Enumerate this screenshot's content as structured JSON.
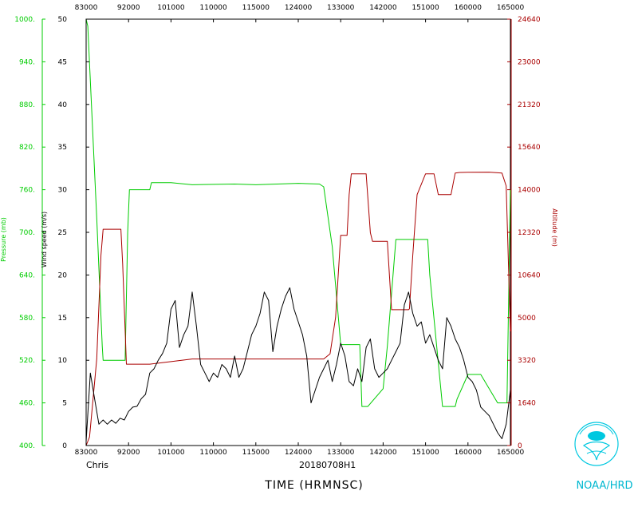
{
  "chart_data": {
    "type": "line",
    "title": "",
    "storm_name": "Chris",
    "flight_id": "20180708H1",
    "xlabel": "TIME (HRMNSC)",
    "credit": "NOAA/HRD",
    "x_ticks_top": [
      "83000",
      "92000",
      "101000",
      "110000",
      "115000",
      "124000",
      "133000",
      "142000",
      "151000",
      "160000",
      "165000"
    ],
    "x_ticks_bottom": [
      "83000",
      "92000",
      "101000",
      "110000",
      "115000",
      "124000",
      "133000",
      "142000",
      "151000",
      "160000",
      "165000"
    ],
    "y_axes": [
      {
        "id": "pressure",
        "label": "Pressure (mb)",
        "color": "#00cc00",
        "side": "left-outer",
        "ylim": [
          400,
          1000
        ],
        "ticks": [
          "400.",
          "460.",
          "520.",
          "580.",
          "640.",
          "700.",
          "760.",
          "820.",
          "880.",
          "940.",
          "1000."
        ]
      },
      {
        "id": "wind",
        "label": "Wind speed (m/s)",
        "color": "#000000",
        "side": "left-inner",
        "ylim": [
          0,
          50
        ],
        "ticks": [
          "0",
          "5",
          "10",
          "15",
          "20",
          "25",
          "30",
          "35",
          "40",
          "45",
          "50"
        ]
      },
      {
        "id": "altitude",
        "label": "Altitude (m)",
        "color": "#aa0000",
        "side": "right",
        "ylim": [
          0,
          24640
        ],
        "ticks": [
          "0",
          "1640",
          "3320",
          "5000",
          "10640",
          "12320",
          "14000",
          "15640",
          "21320",
          "23000",
          "24640"
        ]
      }
    ],
    "x_index_range": [
      0,
      100
    ],
    "series": [
      {
        "axis": "pressure",
        "color": "#00cc00",
        "x": [
          0,
          0.4,
          2.5,
          3.8,
          4.0,
          8.0,
          9.2,
          9.8,
          10.2,
          14,
          15,
          15.4,
          20,
          25,
          35,
          40,
          50,
          55,
          56,
          58,
          60,
          61,
          62,
          62.4,
          64.5,
          65,
          66,
          66.4,
          70,
          71,
          73,
          74,
          75,
          75.4,
          76,
          80,
          80.5,
          81,
          84,
          86,
          87,
          87.4,
          90,
          93,
          97,
          98,
          98.5,
          99.2,
          100
        ],
        "values": [
          1000,
          990,
          720,
          540,
          520,
          520,
          520,
          700,
          760,
          760,
          760,
          770,
          770,
          767,
          768,
          767,
          769,
          768,
          764,
          680,
          542,
          542,
          542,
          542,
          542,
          455,
          455,
          455,
          480,
          540,
          690,
          690,
          690,
          690,
          690,
          690,
          690,
          640,
          455,
          455,
          455,
          465,
          500,
          500,
          460,
          460,
          460,
          460,
          760
        ]
      },
      {
        "axis": "altitude",
        "color": "#aa0000",
        "x": [
          0,
          0.8,
          2.5,
          3.5,
          4.0,
          8.2,
          8.6,
          9.5,
          10.2,
          15,
          25,
          35,
          45,
          55,
          56,
          57.5,
          58.8,
          60,
          61.5,
          62,
          62.5,
          65,
          66,
          67,
          67.5,
          69,
          71,
          72,
          73,
          74,
          75,
          76,
          76.2,
          77,
          78,
          80,
          81,
          82,
          83,
          84,
          85,
          86,
          87,
          88,
          90,
          95,
          98,
          99,
          100
        ],
        "values": [
          0,
          500,
          5000,
          11000,
          12500,
          12500,
          10500,
          4700,
          4700,
          4700,
          5000,
          5000,
          5000,
          5000,
          5000,
          5300,
          7400,
          12150,
          12150,
          14500,
          15700,
          15700,
          15700,
          12300,
          11800,
          11800,
          11800,
          7850,
          7850,
          7850,
          7850,
          7850,
          7900,
          11000,
          14500,
          15700,
          15700,
          15700,
          14500,
          14500,
          14500,
          14500,
          15750,
          15780,
          15790,
          15800,
          15750,
          15000,
          6600
        ]
      },
      {
        "axis": "wind",
        "color": "#000000",
        "x": [
          0,
          1,
          2,
          3,
          4,
          5,
          6,
          7,
          8,
          9,
          10,
          11,
          12,
          13,
          14,
          15,
          16,
          17,
          18,
          19,
          20,
          21,
          22,
          23,
          24,
          25,
          26,
          27,
          28,
          29,
          30,
          31,
          32,
          33,
          34,
          35,
          36,
          37,
          38,
          39,
          40,
          41,
          42,
          43,
          44,
          45,
          46,
          47,
          48,
          49,
          50,
          51,
          52,
          53,
          54,
          55,
          56,
          57,
          58,
          59,
          60,
          61,
          62,
          63,
          64,
          65,
          66,
          67,
          68,
          69,
          70,
          71,
          72,
          73,
          74,
          75,
          76,
          77,
          78,
          79,
          80,
          81,
          82,
          83,
          84,
          85,
          86,
          87,
          88,
          89,
          90,
          91,
          92,
          93,
          94,
          95,
          96,
          97,
          98,
          99,
          100
        ],
        "values": [
          0.5,
          8.5,
          5.5,
          2.5,
          3.0,
          2.5,
          3.0,
          2.6,
          3.2,
          3.0,
          4.0,
          4.5,
          4.6,
          5.5,
          6.0,
          8.5,
          9.0,
          10.0,
          10.8,
          12.0,
          16.0,
          17.0,
          11.5,
          13.0,
          14.0,
          18.0,
          14.0,
          9.5,
          8.5,
          7.5,
          8.5,
          8.0,
          9.5,
          9.0,
          8.0,
          10.5,
          8.0,
          9.0,
          11.0,
          13.0,
          14.0,
          15.5,
          18.0,
          17.0,
          11.0,
          14.0,
          16.0,
          17.5,
          18.5,
          16.0,
          14.5,
          13.0,
          10.5,
          5.0,
          6.5,
          8.0,
          9.0,
          10.0,
          7.5,
          9.5,
          12.0,
          10.5,
          7.5,
          7.0,
          9.0,
          7.5,
          11.5,
          12.5,
          9.0,
          8.0,
          8.5,
          9.0,
          10.0,
          11.0,
          12.0,
          16.5,
          18.0,
          15.5,
          14.0,
          14.5,
          12.0,
          13.0,
          11.5,
          10.0,
          9.0,
          15.0,
          14.0,
          12.5,
          11.5,
          10.0,
          8.0,
          7.5,
          6.5,
          4.5,
          4.0,
          3.5,
          2.5,
          1.5,
          0.8,
          2.5,
          6.5
        ]
      }
    ]
  }
}
